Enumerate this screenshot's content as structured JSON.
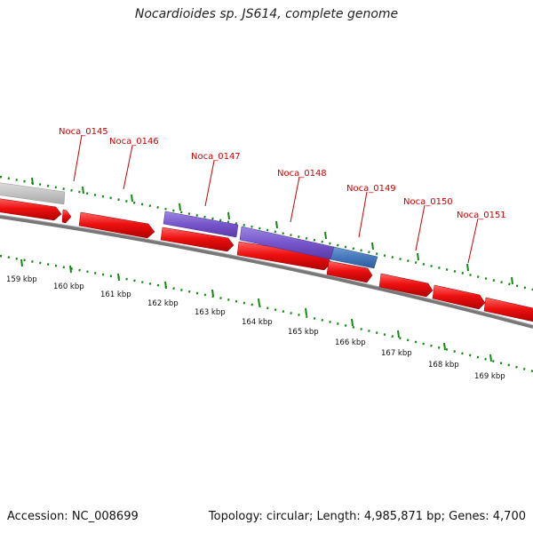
{
  "title": "Nocardioides sp. JS614, complete genome",
  "gene_labels": [
    "Noca_0145",
    "Noca_0146",
    "Noca_0147",
    "Noca_0148",
    "Noca_0149",
    "Noca_0150",
    "Noca_0151"
  ],
  "kbp_labels": [
    "159 kbp",
    "160 kbp",
    "161 kbp",
    "162 kbp",
    "163 kbp",
    "164 kbp",
    "165 kbp",
    "166 kbp",
    "167 kbp",
    "168 kbp",
    "169 kbp"
  ],
  "footer": {
    "accession": "Accession: NC_008699",
    "summary": "Topology: circular; Length: 4,985,871 bp; Genes: 4,700"
  },
  "colors": {
    "forward_gene": "#ee1111",
    "purple_feature": "#7755cc",
    "blue_feature": "#4477bb",
    "grey_feature": "#c4c4c4",
    "backbone": "#777777",
    "tick": "#118811",
    "label": "#cc0000"
  }
}
